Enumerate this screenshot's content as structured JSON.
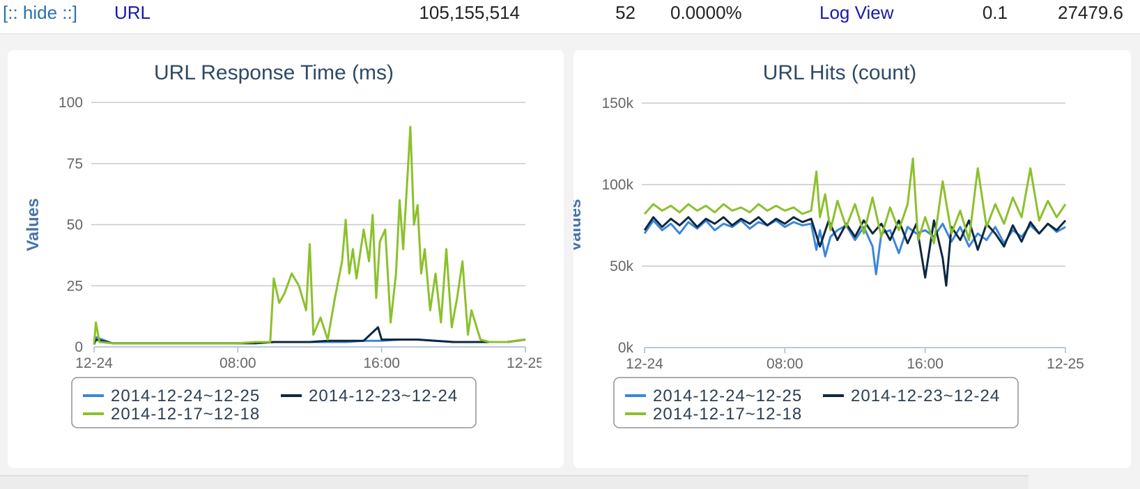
{
  "row": {
    "hide_label": "[:: hide ::]",
    "type": "URL",
    "total": "105,155,514",
    "failure": "52",
    "failure_pct": "0.0000%",
    "log_view": "Log View",
    "min": "0.1",
    "max": "27479.6"
  },
  "colors": {
    "series_blue": "#3a86d8",
    "series_dark": "#0d2740",
    "series_green": "#8cc02c",
    "title": "#2f4a66",
    "axis_label": "#4a73a6"
  },
  "chart_data": [
    {
      "type": "line",
      "title": "URL Response Time (ms)",
      "xlabel": "",
      "ylabel": "Values",
      "ylim": [
        0,
        100
      ],
      "yticks": [
        "0",
        "25",
        "50",
        "75",
        "100"
      ],
      "ytick_values": [
        0,
        25,
        50,
        75,
        100
      ],
      "xlim": [
        0,
        24
      ],
      "xticks": [
        "12-24",
        "08:00",
        "16:00",
        "12-25"
      ],
      "xtick_values": [
        0,
        8,
        16,
        24
      ],
      "grid": true,
      "legend_position": "bottom",
      "series": [
        {
          "name": "2014-12-24~12-25",
          "color": "#3a86d8",
          "x": [
            0,
            0.1,
            1,
            2,
            3,
            4,
            5,
            6,
            7,
            8,
            9,
            10,
            11,
            12,
            13,
            14,
            15,
            16,
            17,
            18,
            19,
            20,
            21,
            22,
            23,
            24
          ],
          "values": [
            1,
            4,
            1.5,
            1.5,
            1.5,
            1.5,
            1.5,
            1.5,
            1.5,
            1.5,
            1.5,
            2,
            2,
            2,
            2,
            2,
            2.5,
            2.5,
            3,
            3,
            2.5,
            2,
            2,
            2,
            2,
            3
          ]
        },
        {
          "name": "2014-12-23~12-24",
          "color": "#0d2740",
          "x": [
            0,
            0.1,
            1,
            2,
            3,
            4,
            5,
            6,
            7,
            8,
            9,
            10,
            11,
            12,
            13,
            14,
            15,
            15.8,
            16,
            17,
            18,
            19,
            20,
            21,
            22,
            23,
            24
          ],
          "values": [
            1,
            3,
            1.5,
            1.5,
            1.5,
            1.5,
            1.5,
            1.5,
            1.5,
            1.5,
            1.5,
            2,
            2,
            2,
            2.5,
            2.5,
            2.5,
            8,
            3,
            3,
            3,
            2.5,
            2,
            2,
            2,
            2,
            3
          ]
        },
        {
          "name": "2014-12-17~12-18",
          "color": "#8cc02c",
          "x": [
            0,
            0.1,
            0.3,
            1,
            2,
            3,
            4,
            5,
            6,
            7,
            8,
            9,
            9.8,
            10,
            10.3,
            10.6,
            11,
            11.4,
            11.8,
            12,
            12.2,
            12.6,
            13,
            13.4,
            13.8,
            14,
            14.2,
            14.4,
            14.6,
            15,
            15.3,
            15.5,
            15.7,
            15.9,
            16.2,
            16.5,
            16.8,
            17,
            17.2,
            17.4,
            17.6,
            17.8,
            18,
            18.2,
            18.4,
            18.7,
            19,
            19.3,
            19.6,
            19.9,
            20.2,
            20.5,
            20.8,
            21,
            21.5,
            22,
            23,
            24
          ],
          "values": [
            1,
            10,
            2,
            1.5,
            1.5,
            1.5,
            1.5,
            1.5,
            1.5,
            1.5,
            1.5,
            2,
            2,
            28,
            18,
            22,
            30,
            25,
            15,
            42,
            5,
            12,
            3,
            20,
            35,
            52,
            30,
            40,
            28,
            48,
            35,
            54,
            20,
            43,
            48,
            10,
            30,
            60,
            40,
            65,
            90,
            50,
            58,
            30,
            40,
            15,
            30,
            10,
            40,
            8,
            20,
            35,
            5,
            15,
            3,
            2,
            2,
            3
          ]
        }
      ]
    },
    {
      "type": "line",
      "title": "URL Hits (count)",
      "xlabel": "",
      "ylabel": "Values",
      "ylim": [
        0,
        150000
      ],
      "yticks": [
        "0k",
        "50k",
        "100k",
        "150k"
      ],
      "ytick_values": [
        0,
        50000,
        100000,
        150000
      ],
      "xlim": [
        0,
        24
      ],
      "xticks": [
        "12-24",
        "08:00",
        "16:00",
        "12-25"
      ],
      "xtick_values": [
        0,
        8,
        16,
        24
      ],
      "grid": true,
      "legend_position": "bottom",
      "series": [
        {
          "name": "2014-12-24~12-25",
          "color": "#3a86d8",
          "x": [
            0,
            0.5,
            1,
            1.5,
            2,
            2.5,
            3,
            3.5,
            4,
            4.5,
            5,
            5.5,
            6,
            6.5,
            7,
            7.5,
            8,
            8.5,
            9,
            9.5,
            9.8,
            10,
            10.3,
            10.6,
            11,
            11.5,
            12,
            12.5,
            13,
            13.2,
            13.5,
            14,
            14.5,
            15,
            15.5,
            16,
            16.5,
            17,
            17.5,
            18,
            18.5,
            19,
            19.5,
            20,
            20.5,
            21,
            21.5,
            22,
            22.5,
            23,
            23.5,
            24
          ],
          "values": [
            70000,
            78000,
            72000,
            76000,
            70000,
            77000,
            73000,
            78000,
            72000,
            76000,
            74000,
            78000,
            73000,
            77000,
            75000,
            78000,
            74000,
            77000,
            75000,
            76000,
            60000,
            72000,
            56000,
            68000,
            72000,
            75000,
            66000,
            74000,
            62000,
            45000,
            70000,
            72000,
            58000,
            74000,
            70000,
            72000,
            68000,
            76000,
            65000,
            74000,
            62000,
            70000,
            66000,
            74000,
            64000,
            72000,
            68000,
            75000,
            70000,
            76000,
            71000,
            74000
          ]
        },
        {
          "name": "2014-12-23~12-24",
          "color": "#0d2740",
          "x": [
            0,
            0.5,
            1,
            1.5,
            2,
            2.5,
            3,
            3.5,
            4,
            4.5,
            5,
            5.5,
            6,
            6.5,
            7,
            7.5,
            8,
            8.5,
            9,
            9.5,
            10,
            10.5,
            11,
            11.5,
            12,
            12.5,
            13,
            13.5,
            14,
            14.5,
            15,
            15.5,
            16,
            16.5,
            17,
            17.2,
            17.5,
            18,
            18.5,
            19,
            19.5,
            20,
            20.5,
            21,
            21.5,
            22,
            22.5,
            23,
            23.5,
            24
          ],
          "values": [
            72000,
            80000,
            74000,
            79000,
            75000,
            80000,
            74000,
            79000,
            76000,
            80000,
            75000,
            79000,
            76000,
            80000,
            75000,
            79000,
            76000,
            80000,
            77000,
            79000,
            62000,
            78000,
            66000,
            76000,
            68000,
            78000,
            70000,
            76000,
            66000,
            78000,
            64000,
            76000,
            43000,
            78000,
            55000,
            38000,
            74000,
            66000,
            78000,
            60000,
            76000,
            70000,
            62000,
            75000,
            65000,
            77000,
            70000,
            76000,
            72000,
            78000
          ]
        },
        {
          "name": "2014-12-17~12-18",
          "color": "#8cc02c",
          "x": [
            0,
            0.5,
            1,
            1.5,
            2,
            2.5,
            3,
            3.5,
            4,
            4.5,
            5,
            5.5,
            6,
            6.5,
            7,
            7.5,
            8,
            8.5,
            9,
            9.5,
            9.8,
            10,
            10.3,
            10.6,
            11,
            11.5,
            12,
            12.5,
            13,
            13.5,
            14,
            14.5,
            15,
            15.3,
            15.6,
            16,
            16.5,
            17,
            17.5,
            18,
            18.5,
            19,
            19.5,
            20,
            20.5,
            21,
            21.5,
            22,
            22.5,
            23,
            23.5,
            24
          ],
          "values": [
            82000,
            88000,
            84000,
            87000,
            83000,
            88000,
            84000,
            87000,
            83000,
            88000,
            84000,
            86000,
            83000,
            88000,
            84000,
            87000,
            84000,
            86000,
            82000,
            84000,
            108000,
            80000,
            94000,
            72000,
            90000,
            74000,
            88000,
            70000,
            92000,
            68000,
            86000,
            72000,
            88000,
            116000,
            66000,
            80000,
            64000,
            102000,
            70000,
            84000,
            66000,
            110000,
            74000,
            88000,
            76000,
            92000,
            80000,
            110000,
            78000,
            90000,
            80000,
            88000
          ]
        }
      ]
    }
  ]
}
